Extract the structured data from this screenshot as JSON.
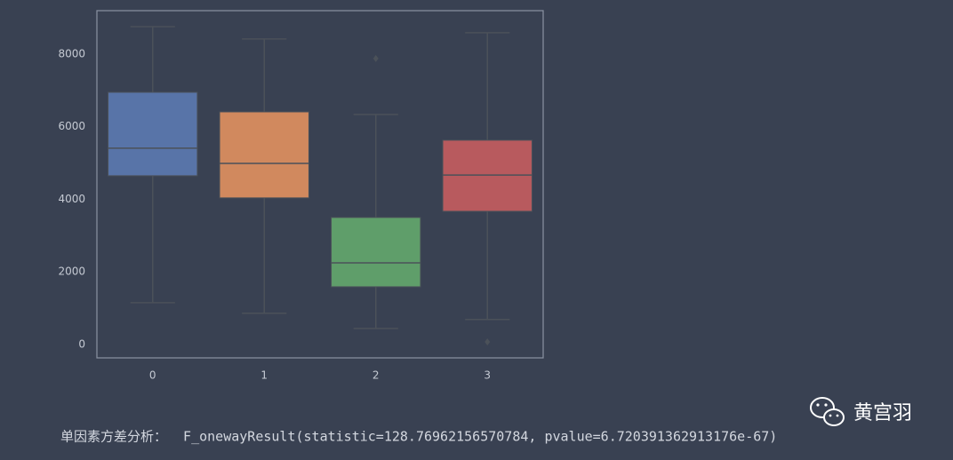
{
  "chart_data": {
    "type": "box",
    "categories": [
      "0",
      "1",
      "2",
      "3"
    ],
    "colors": [
      "#5874a8",
      "#d1895e",
      "#5f9e6a",
      "#b85a5e"
    ],
    "boxes": [
      {
        "min": 1150,
        "q1": 4650,
        "median": 5410,
        "q3": 6950,
        "max": 8760,
        "outliers": []
      },
      {
        "min": 860,
        "q1": 4040,
        "median": 4990,
        "q3": 6410,
        "max": 8420,
        "outliers": []
      },
      {
        "min": 440,
        "q1": 1590,
        "median": 2250,
        "q3": 3500,
        "max": 6340,
        "outliers": [
          7880
        ]
      },
      {
        "min": 690,
        "q1": 3670,
        "median": 4670,
        "q3": 5630,
        "max": 8590,
        "outliers": [
          70
        ]
      }
    ],
    "ylim": [
      -370,
      9200
    ],
    "yticks": [
      0,
      2000,
      4000,
      6000,
      8000
    ]
  },
  "output_text": "单因素方差分析：  F_onewayResult(statistic=128.76962156570784, pvalue=6.720391362913176e-67)",
  "watermark": "黄宫羽"
}
